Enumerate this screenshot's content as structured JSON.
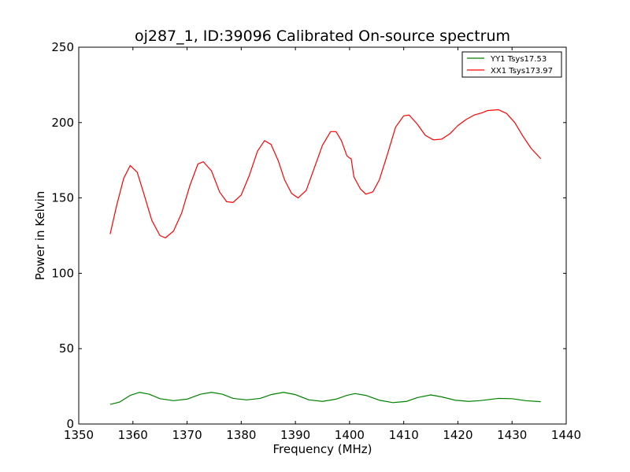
{
  "chart_data": {
    "type": "line",
    "title": "oj287_1, ID:39096 Calibrated On-source spectrum",
    "xlabel": "Frequency (MHz)",
    "ylabel": "Power in Kelvin",
    "xlim": [
      1350,
      1440
    ],
    "ylim": [
      0,
      250
    ],
    "xticks": [
      1350,
      1360,
      1370,
      1380,
      1390,
      1400,
      1410,
      1420,
      1430,
      1440
    ],
    "yticks": [
      0,
      50,
      100,
      150,
      200,
      250
    ],
    "grid": false,
    "legend": "top-right",
    "series": [
      {
        "name": "YY1 Tsys17.53",
        "color": "#008000",
        "points": [
          [
            1355.8,
            13.0
          ],
          [
            1357.5,
            14.5
          ],
          [
            1359.5,
            19.0
          ],
          [
            1361.2,
            21.0
          ],
          [
            1363.0,
            19.8
          ],
          [
            1365.0,
            16.8
          ],
          [
            1367.5,
            15.5
          ],
          [
            1370.0,
            16.5
          ],
          [
            1372.5,
            19.8
          ],
          [
            1374.5,
            21.0
          ],
          [
            1376.5,
            19.8
          ],
          [
            1378.5,
            17.0
          ],
          [
            1381.0,
            16.0
          ],
          [
            1383.5,
            17.0
          ],
          [
            1385.5,
            19.5
          ],
          [
            1387.8,
            21.0
          ],
          [
            1390.0,
            19.5
          ],
          [
            1392.5,
            16.0
          ],
          [
            1395.0,
            15.0
          ],
          [
            1397.5,
            16.5
          ],
          [
            1399.5,
            19.0
          ],
          [
            1401.0,
            20.2
          ],
          [
            1403.0,
            19.0
          ],
          [
            1405.5,
            15.8
          ],
          [
            1408.0,
            14.2
          ],
          [
            1410.5,
            15.0
          ],
          [
            1412.5,
            17.5
          ],
          [
            1415.0,
            19.3
          ],
          [
            1417.0,
            18.0
          ],
          [
            1419.5,
            15.8
          ],
          [
            1422.0,
            15.0
          ],
          [
            1424.0,
            15.5
          ],
          [
            1425.3,
            16.0
          ],
          [
            1427.5,
            17.0
          ],
          [
            1430.0,
            16.8
          ],
          [
            1432.5,
            15.5
          ],
          [
            1435.3,
            14.8
          ]
        ]
      },
      {
        "name": "XX1 Tsys173.97",
        "color": "#ff0000",
        "points": [
          [
            1355.8,
            126
          ],
          [
            1357.0,
            145
          ],
          [
            1358.3,
            163
          ],
          [
            1359.5,
            171.5
          ],
          [
            1360.8,
            167
          ],
          [
            1362.0,
            153
          ],
          [
            1363.5,
            135
          ],
          [
            1365.0,
            125
          ],
          [
            1366.0,
            123.5
          ],
          [
            1367.5,
            128
          ],
          [
            1369.0,
            140
          ],
          [
            1370.5,
            158
          ],
          [
            1372.0,
            172.5
          ],
          [
            1373.0,
            174
          ],
          [
            1374.5,
            168
          ],
          [
            1376.0,
            154
          ],
          [
            1377.3,
            147.5
          ],
          [
            1378.5,
            147
          ],
          [
            1380.0,
            152
          ],
          [
            1381.5,
            165
          ],
          [
            1383.0,
            181
          ],
          [
            1384.3,
            188
          ],
          [
            1385.5,
            185.5
          ],
          [
            1386.8,
            175
          ],
          [
            1388.0,
            162
          ],
          [
            1389.3,
            153
          ],
          [
            1390.5,
            150
          ],
          [
            1392.0,
            155
          ],
          [
            1393.5,
            170
          ],
          [
            1395.0,
            185
          ],
          [
            1396.5,
            194
          ],
          [
            1397.5,
            194
          ],
          [
            1398.5,
            188
          ],
          [
            1399.5,
            178
          ],
          [
            1400.0,
            176.5
          ],
          [
            1400.3,
            176
          ],
          [
            1400.8,
            164
          ],
          [
            1402.0,
            156
          ],
          [
            1403.0,
            152.5
          ],
          [
            1404.3,
            154
          ],
          [
            1405.5,
            162
          ],
          [
            1407.0,
            179
          ],
          [
            1408.5,
            197
          ],
          [
            1410.0,
            204.5
          ],
          [
            1411.0,
            205
          ],
          [
            1412.5,
            199
          ],
          [
            1414.0,
            191.5
          ],
          [
            1415.5,
            188.5
          ],
          [
            1417.0,
            189
          ],
          [
            1418.5,
            192.5
          ],
          [
            1420.0,
            198
          ],
          [
            1421.5,
            202
          ],
          [
            1423.0,
            205
          ],
          [
            1424.5,
            206.5
          ],
          [
            1425.5,
            208
          ],
          [
            1427.5,
            208.5
          ],
          [
            1429.0,
            206
          ],
          [
            1430.5,
            200
          ],
          [
            1432.0,
            191
          ],
          [
            1433.5,
            183
          ],
          [
            1435.3,
            176
          ]
        ]
      }
    ]
  }
}
